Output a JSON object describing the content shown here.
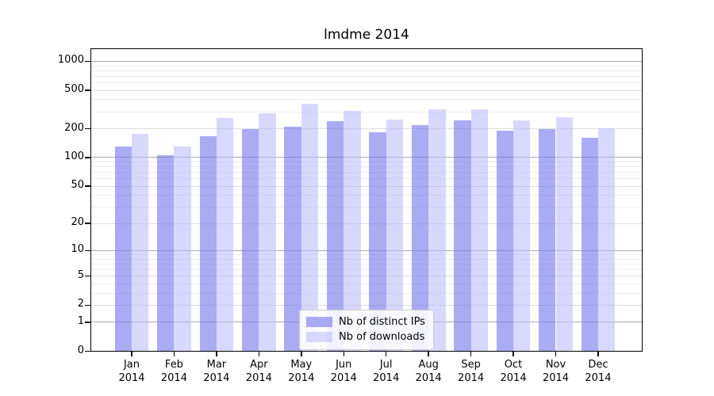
{
  "title": "lmdme 2014",
  "chart_data": {
    "type": "bar",
    "title": "lmdme 2014",
    "xlabel": "",
    "ylabel": "",
    "scale": "log10(value+1), symlog-like with 0 at axis bottom",
    "grid": true,
    "legend_position": "lower-center",
    "categories": [
      "Jan",
      "Feb",
      "Mar",
      "Apr",
      "May",
      "Jun",
      "Jul",
      "Aug",
      "Sep",
      "Oct",
      "Nov",
      "Dec"
    ],
    "year_label": "2014",
    "y_ticks": [
      1000,
      500,
      200,
      100,
      50,
      20,
      10,
      5,
      2,
      1,
      0
    ],
    "ylim": [
      0,
      1400
    ],
    "series": [
      {
        "name": "Nb of distinct IPs",
        "color": "rgba(119,119,238,0.62)",
        "solid_color": "#a9a9f7",
        "values": [
          130,
          105,
          168,
          197,
          210,
          238,
          185,
          217,
          243,
          189,
          199,
          162
        ]
      },
      {
        "name": "Nb of downloads",
        "color": "rgba(187,187,255,0.58)",
        "solid_color": "#d9d9f7",
        "values": [
          178,
          130,
          258,
          289,
          366,
          305,
          247,
          318,
          320,
          246,
          262,
          203
        ]
      }
    ],
    "gridline_values": {
      "major_decades": [
        1,
        10,
        100,
        1000
      ],
      "labeled_sub": [
        2,
        5,
        20,
        50,
        200,
        500
      ],
      "minor": [
        3,
        4,
        6,
        7,
        8,
        9,
        30,
        40,
        60,
        70,
        80,
        90,
        300,
        400,
        600,
        700,
        800,
        900
      ]
    },
    "grid_colors": {
      "major": "#ababab",
      "labeled_sub": "#dcdcdc",
      "minor": "#ededed"
    }
  },
  "legend": {
    "items": [
      {
        "label": "Nb of distinct IPs"
      },
      {
        "label": "Nb of downloads"
      }
    ]
  }
}
